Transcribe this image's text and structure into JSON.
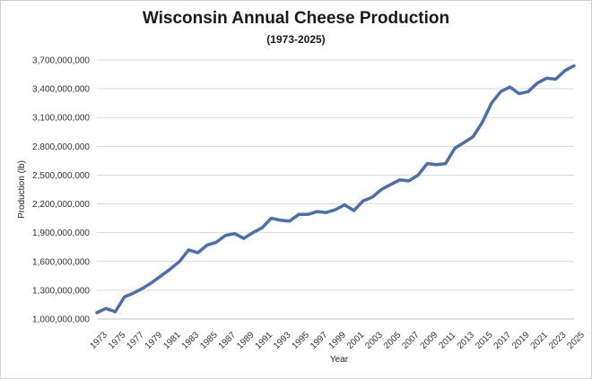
{
  "chart_data": {
    "type": "line",
    "title": "Wisconsin Annual Cheese Production",
    "subtitle": "(1973-2025)",
    "xlabel": "Year",
    "ylabel": "Production (lb)",
    "ylim": [
      1000000000,
      3700000000
    ],
    "yticks": [
      1000000000,
      1300000000,
      1600000000,
      1900000000,
      2200000000,
      2500000000,
      2800000000,
      3100000000,
      3400000000,
      3700000000
    ],
    "ytick_labels": [
      "1,000,000,000",
      "1,300,000,000",
      "1,600,000,000",
      "1,900,000,000",
      "2,200,000,000",
      "2,500,000,000",
      "2,800,000,000",
      "3,100,000,000",
      "3,400,000,000",
      "3,700,000,000"
    ],
    "xtick_labels": [
      "1973",
      "1975",
      "1977",
      "1979",
      "1981",
      "1983",
      "1985",
      "1987",
      "1989",
      "1991",
      "1993",
      "1995",
      "1997",
      "1999",
      "2001",
      "2003",
      "2005",
      "2007",
      "2009",
      "2011",
      "2013",
      "2015",
      "2017",
      "2019",
      "2021",
      "2023",
      "2025"
    ],
    "grid": true,
    "legend": "none",
    "line_color": "#4a6fb0",
    "series": [
      {
        "x": [
          1973,
          1974,
          1975,
          1976,
          1977,
          1978,
          1979,
          1980,
          1981,
          1982,
          1983,
          1984,
          1985,
          1986,
          1987,
          1988,
          1989,
          1990,
          1991,
          1992,
          1993,
          1994,
          1995,
          1996,
          1997,
          1998,
          1999,
          2000,
          2001,
          2002,
          2003,
          2004,
          2005,
          2006,
          2007,
          2008,
          2009,
          2010,
          2011,
          2012,
          2013,
          2014,
          2015,
          2016,
          2017,
          2018,
          2019,
          2020,
          2021,
          2022,
          2023,
          2024,
          2025
        ],
        "values": [
          1065000000,
          1110000000,
          1075000000,
          1230000000,
          1270000000,
          1320000000,
          1380000000,
          1450000000,
          1520000000,
          1600000000,
          1720000000,
          1690000000,
          1770000000,
          1800000000,
          1870000000,
          1890000000,
          1840000000,
          1900000000,
          1950000000,
          2050000000,
          2030000000,
          2020000000,
          2090000000,
          2090000000,
          2120000000,
          2110000000,
          2140000000,
          2190000000,
          2130000000,
          2230000000,
          2270000000,
          2350000000,
          2400000000,
          2450000000,
          2440000000,
          2500000000,
          2620000000,
          2610000000,
          2620000000,
          2780000000,
          2840000000,
          2900000000,
          3050000000,
          3250000000,
          3370000000,
          3420000000,
          3350000000,
          3370000000,
          3460000000,
          3510000000,
          3500000000,
          3590000000,
          3640000000
        ]
      }
    ]
  }
}
